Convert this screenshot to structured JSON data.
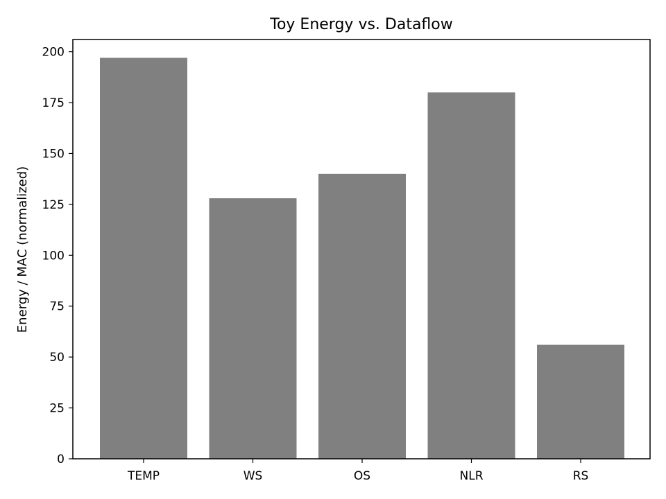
{
  "chart_data": {
    "type": "bar",
    "title": "Toy Energy vs. Dataflow",
    "xlabel": "",
    "ylabel": "Energy / MAC (normalized)",
    "categories": [
      "TEMP",
      "WS",
      "OS",
      "NLR",
      "RS"
    ],
    "values": [
      197,
      128,
      140,
      180,
      56
    ],
    "ylim": [
      0,
      206
    ],
    "yticks": [
      0,
      25,
      50,
      75,
      100,
      125,
      150,
      175,
      200
    ],
    "bar_color": "#808080",
    "grid": false,
    "legend": "none"
  }
}
